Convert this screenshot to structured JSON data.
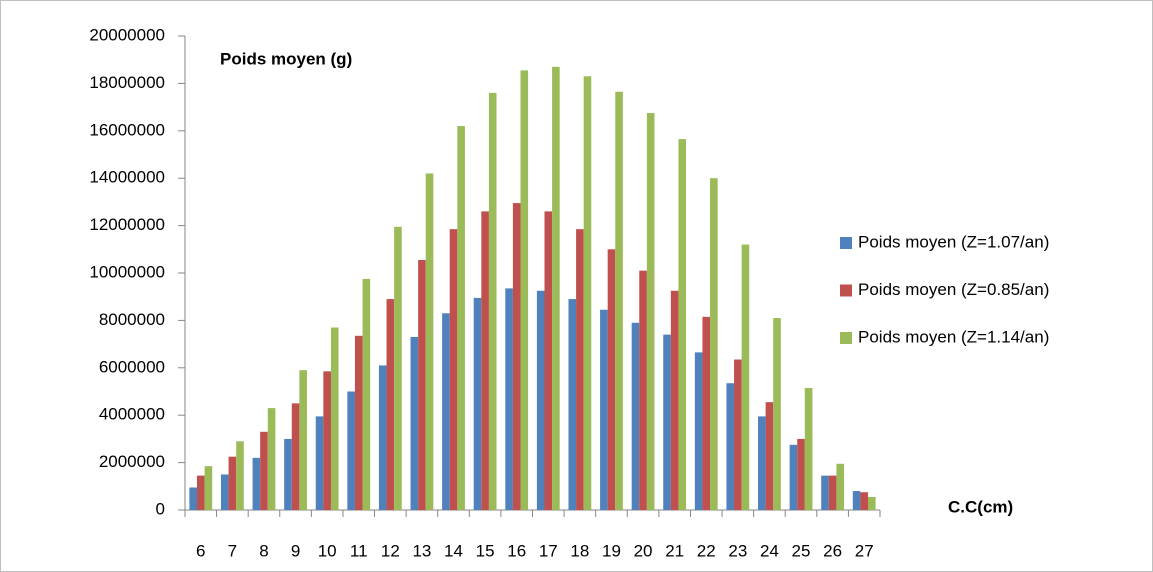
{
  "chart_data": {
    "type": "bar",
    "title": "Poids moyen (g)",
    "x_label": "C.C(cm)",
    "categories": [
      "6",
      "7",
      "8",
      "9",
      "10",
      "11",
      "12",
      "13",
      "14",
      "15",
      "16",
      "17",
      "18",
      "19",
      "20",
      "21",
      "22",
      "23",
      "24",
      "25",
      "26",
      "27"
    ],
    "series": [
      {
        "name": "Poids moyen (Z=1.07/an)",
        "color": "#4f81bd",
        "values": [
          950000,
          1500000,
          2200000,
          3000000,
          3950000,
          5000000,
          6100000,
          7300000,
          8300000,
          8950000,
          9350000,
          9250000,
          8900000,
          8450000,
          7900000,
          7400000,
          6650000,
          5350000,
          3950000,
          2750000,
          1450000,
          800000
        ]
      },
      {
        "name": "Poids moyen (Z=0.85/an)",
        "color": "#c0504d",
        "values": [
          1450000,
          2250000,
          3300000,
          4500000,
          5850000,
          7350000,
          8900000,
          10550000,
          11850000,
          12600000,
          12950000,
          12600000,
          11850000,
          11000000,
          10100000,
          9250000,
          8150000,
          6350000,
          4550000,
          3000000,
          1450000,
          750000
        ]
      },
      {
        "name": "Poids moyen (Z=1.14/an)",
        "color": "#9bbb59",
        "values": [
          1850000,
          2900000,
          4300000,
          5900000,
          7700000,
          9750000,
          11950000,
          14200000,
          16200000,
          17600000,
          18550000,
          18700000,
          18300000,
          17650000,
          16750000,
          15650000,
          14000000,
          11200000,
          8100000,
          5150000,
          1950000,
          550000
        ]
      }
    ],
    "ylim": [
      0,
      20000000
    ],
    "yticks": [
      0,
      2000000,
      4000000,
      6000000,
      8000000,
      10000000,
      12000000,
      14000000,
      16000000,
      18000000,
      20000000
    ],
    "grid": false,
    "legend": "right"
  }
}
